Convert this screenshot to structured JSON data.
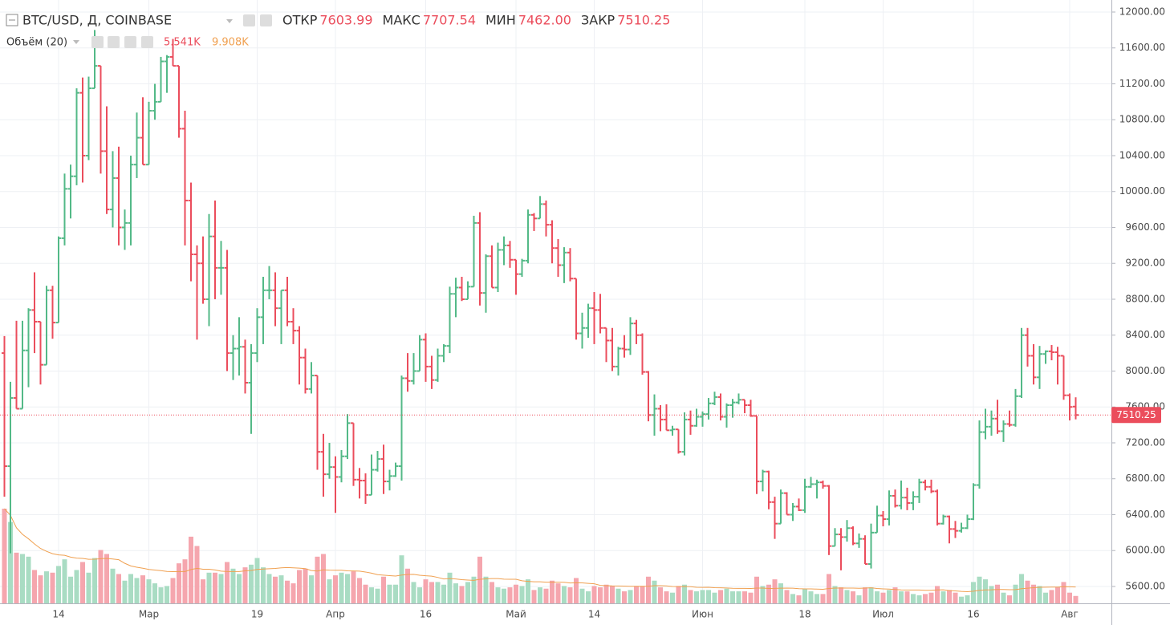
{
  "chart_data": {
    "type": "ohlc",
    "header": {
      "symbol": "BTC/USD, Д, COINBASE",
      "ohlc": [
        {
          "name": "ОТКР",
          "value": 7603.99
        },
        {
          "name": "МАКС",
          "value": 7707.54
        },
        {
          "name": "МИН",
          "value": 7462,
          "label": "7462.00"
        },
        {
          "name": "ЗАКР",
          "value": 7510.25
        }
      ]
    },
    "volume_legend": {
      "title": "Объём (20)",
      "last": {
        "value": 5.541,
        "label": "5.541K"
      },
      "ma": {
        "value": 9.908,
        "label": "9.908K"
      }
    },
    "last_price": {
      "value": 7510.25,
      "label": "7510.25"
    },
    "up_color": "#53b987",
    "down_color": "#eb4d5c",
    "volume_up_color": "#a9dcc3",
    "volume_down_color": "#f5a6ae",
    "ma_color": "#f0a050",
    "grid": true,
    "ylim": [
      5412,
      12134
    ],
    "yticks": [
      {
        "value": 12000,
        "label": "12000.00"
      },
      {
        "value": 11600,
        "label": "11600.00"
      },
      {
        "value": 11200,
        "label": "11200.00"
      },
      {
        "value": 10800,
        "label": "10800.00"
      },
      {
        "value": 10400,
        "label": "10400.00"
      },
      {
        "value": 10000,
        "label": "10000.00"
      },
      {
        "value": 9600,
        "label": "9600.00"
      },
      {
        "value": 9200,
        "label": "9200.00"
      },
      {
        "value": 8800,
        "label": "8800.00"
      },
      {
        "value": 8400,
        "label": "8400.00"
      },
      {
        "value": 8000,
        "label": "8000.00"
      },
      {
        "value": 7600,
        "label": "7600.00"
      },
      {
        "value": 7200,
        "label": "7200.00"
      },
      {
        "value": 6800,
        "label": "6800.00"
      },
      {
        "value": 6400,
        "label": "6400.00"
      },
      {
        "value": 6000,
        "label": "6000.00"
      },
      {
        "value": 5600,
        "label": "5600.00"
      }
    ],
    "categories": [
      null,
      null,
      null,
      null,
      null,
      null,
      null,
      null,
      null,
      "14",
      null,
      null,
      null,
      null,
      null,
      null,
      null,
      null,
      null,
      null,
      null,
      null,
      null,
      null,
      "Мар",
      null,
      null,
      null,
      null,
      null,
      null,
      null,
      null,
      null,
      null,
      null,
      null,
      null,
      null,
      null,
      null,
      null,
      "19",
      null,
      null,
      null,
      null,
      null,
      null,
      null,
      null,
      null,
      null,
      null,
      null,
      "Апр",
      null,
      null,
      null,
      null,
      null,
      null,
      null,
      null,
      null,
      null,
      null,
      null,
      null,
      null,
      "16",
      null,
      null,
      null,
      null,
      null,
      null,
      null,
      null,
      null,
      null,
      null,
      null,
      null,
      null,
      "Май",
      null,
      null,
      null,
      null,
      null,
      null,
      null,
      null,
      null,
      null,
      null,
      null,
      "14",
      null,
      null,
      null,
      null,
      null,
      null,
      null,
      null,
      null,
      null,
      null,
      null,
      null,
      null,
      null,
      null,
      null,
      "Июн",
      null,
      null,
      null,
      null,
      null,
      null,
      null,
      null,
      null,
      null,
      null,
      null,
      null,
      null,
      null,
      null,
      "18",
      null,
      null,
      null,
      null,
      null,
      null,
      null,
      null,
      null,
      null,
      null,
      null,
      "Июл",
      null,
      null,
      null,
      null,
      null,
      null,
      null,
      null,
      null,
      null,
      null,
      null,
      null,
      null,
      "16",
      null,
      null,
      null,
      null,
      null,
      null,
      null,
      null,
      null,
      null,
      null,
      null,
      null,
      null,
      null,
      "Авг",
      null
    ],
    "open": [
      8200,
      6940,
      7700,
      7580,
      8230,
      8680,
      8550,
      8070,
      8900,
      8540,
      9480,
      10030,
      10170,
      11100,
      10400,
      11150,
      11400,
      10450,
      9800,
      10150,
      9600,
      9650,
      10300,
      10600,
      10300,
      10900,
      11000,
      11450,
      11500,
      11400,
      10700,
      9900,
      9300,
      9200,
      8800,
      9500,
      9150,
      9150,
      8200,
      8250,
      8270,
      7870,
      8200,
      8600,
      8900,
      8900,
      8700,
      8900,
      8550,
      8450,
      8150,
      7800,
      7950,
      7100,
      6850,
      6930,
      6820,
      7050,
      7420,
      6790,
      6780,
      6620,
      6900,
      7020,
      6770,
      6830,
      6940,
      7920,
      7890,
      8000,
      8350,
      8050,
      7900,
      8170,
      8280,
      8860,
      8930,
      8800,
      8940,
      9650,
      8870,
      9280,
      8930,
      9350,
      9400,
      9240,
      9080,
      9230,
      9740,
      9700,
      9860,
      9630,
      9370,
      9180,
      9320,
      9030,
      8420,
      8480,
      8700,
      8680,
      8480,
      8340,
      8050,
      8250,
      8240,
      8530,
      8400,
      7990,
      7510,
      7580,
      7460,
      7340,
      7350,
      7100,
      7460,
      7390,
      7490,
      7520,
      7640,
      7710,
      7490,
      7620,
      7650,
      7680,
      7620,
      7500,
      6770,
      6880,
      6540,
      6300,
      6640,
      6400,
      6490,
      6450,
      6710,
      6740,
      6760,
      6720,
      6050,
      6180,
      6150,
      6250,
      6080,
      6130,
      5850,
      6200,
      6390,
      6350,
      6610,
      6500,
      6590,
      6530,
      6600,
      6760,
      6710,
      6660,
      6300,
      6380,
      6240,
      6220,
      6250,
      6350,
      6730,
      7320,
      7380,
      7470,
      7330,
      7410,
      7400,
      7720,
      8400,
      8170,
      7930,
      8190,
      8220,
      8210,
      8170,
      7730,
      7603.99
    ],
    "high": [
      8390,
      7880,
      8560,
      8560,
      8700,
      9100,
      8550,
      8950,
      8950,
      9500,
      10200,
      10300,
      11150,
      11270,
      11280,
      11800,
      11400,
      10950,
      10450,
      10500,
      9800,
      10400,
      10880,
      11050,
      11000,
      11200,
      11500,
      11520,
      11700,
      11400,
      10900,
      10100,
      9400,
      9500,
      9750,
      9900,
      9450,
      9350,
      8400,
      8600,
      8350,
      8300,
      8700,
      9050,
      9170,
      9100,
      8900,
      9050,
      8700,
      8500,
      8250,
      8100,
      7950,
      7300,
      7200,
      7050,
      7120,
      7520,
      7420,
      6920,
      6860,
      7070,
      7110,
      7180,
      6900,
      6980,
      7950,
      8200,
      8200,
      8400,
      8420,
      8170,
      8250,
      8300,
      8940,
      9040,
      9050,
      9000,
      9730,
      9770,
      9300,
      9400,
      9430,
      9500,
      9450,
      9240,
      9250,
      9800,
      9760,
      9950,
      9900,
      9680,
      9470,
      9380,
      9370,
      9030,
      8650,
      8750,
      8880,
      8860,
      8480,
      8480,
      8270,
      8400,
      8600,
      8570,
      8420,
      8000,
      7740,
      7620,
      7630,
      7390,
      7350,
      7540,
      7560,
      7580,
      7550,
      7700,
      7770,
      7750,
      7640,
      7690,
      7750,
      7680,
      7680,
      7500,
      6900,
      6890,
      6600,
      6680,
      6650,
      6530,
      6580,
      6800,
      6820,
      6790,
      6780,
      6730,
      6250,
      6250,
      6340,
      6270,
      6190,
      6170,
      6300,
      6500,
      6440,
      6670,
      6680,
      6780,
      6700,
      6660,
      6800,
      6790,
      6790,
      6680,
      6400,
      6390,
      6330,
      6310,
      6400,
      6750,
      7450,
      7580,
      7560,
      7680,
      7450,
      7560,
      7800,
      8480,
      8480,
      8300,
      8280,
      8230,
      8290,
      8270,
      8170,
      7750,
      7707.54
    ],
    "low": [
      6600,
      5970,
      7580,
      7580,
      7820,
      8200,
      7850,
      8070,
      8360,
      8540,
      9400,
      9700,
      10070,
      10100,
      10350,
      11150,
      10200,
      9750,
      9600,
      9400,
      9350,
      9400,
      10150,
      10300,
      10300,
      10800,
      11000,
      11100,
      11400,
      10600,
      9400,
      9000,
      8350,
      8750,
      8500,
      8800,
      8850,
      8000,
      7900,
      7950,
      7750,
      7300,
      8100,
      8300,
      8800,
      8500,
      8300,
      8500,
      8300,
      7850,
      7750,
      7750,
      6900,
      6600,
      6800,
      6420,
      6760,
      7020,
      6720,
      6580,
      6520,
      6620,
      6880,
      6630,
      6670,
      6820,
      6780,
      7770,
      7850,
      8000,
      7880,
      7800,
      7880,
      8100,
      8200,
      8600,
      8780,
      8800,
      8940,
      8730,
      8650,
      8930,
      8880,
      9180,
      9150,
      8850,
      9050,
      9200,
      9560,
      9700,
      9500,
      9200,
      9050,
      8980,
      9000,
      8350,
      8250,
      8370,
      8300,
      8420,
      8100,
      8000,
      7950,
      8150,
      8180,
      8300,
      7960,
      7440,
      7280,
      7330,
      7340,
      7280,
      7080,
      7060,
      7290,
      7380,
      7380,
      7460,
      7620,
      7450,
      7370,
      7480,
      7630,
      7530,
      7490,
      6630,
      6660,
      6460,
      6130,
      6300,
      6400,
      6330,
      6440,
      6420,
      6700,
      6580,
      6690,
      5950,
      6050,
      5780,
      6100,
      6060,
      6030,
      5850,
      5800,
      6200,
      6270,
      6280,
      6480,
      6460,
      6450,
      6450,
      6530,
      6670,
      6640,
      6280,
      6290,
      6080,
      6140,
      6200,
      6240,
      6340,
      6690,
      7240,
      7280,
      7300,
      7210,
      7380,
      7380,
      7700,
      8050,
      7850,
      7800,
      8080,
      8120,
      7850,
      7680,
      7450,
      7462
    ],
    "close": [
      6940,
      7700,
      7580,
      8230,
      8680,
      8550,
      8070,
      8900,
      8540,
      9480,
      10030,
      10170,
      11100,
      10400,
      11150,
      11400,
      10450,
      9800,
      10150,
      9600,
      9650,
      10300,
      10600,
      10300,
      10900,
      11000,
      11450,
      11500,
      11400,
      10700,
      9900,
      9300,
      9200,
      8800,
      9500,
      9150,
      9150,
      8200,
      8250,
      8270,
      7870,
      8200,
      8600,
      8900,
      8900,
      8700,
      8900,
      8550,
      8450,
      8150,
      7800,
      7950,
      7100,
      6850,
      6930,
      6820,
      7050,
      7420,
      6790,
      6780,
      6620,
      6900,
      7020,
      6770,
      6830,
      6940,
      7920,
      7890,
      8000,
      8350,
      8050,
      7900,
      8170,
      8280,
      8860,
      8930,
      8800,
      8940,
      9650,
      8870,
      9280,
      8930,
      9350,
      9400,
      9240,
      9080,
      9230,
      9740,
      9700,
      9860,
      9630,
      9370,
      9180,
      9320,
      9030,
      8420,
      8480,
      8700,
      8680,
      8480,
      8340,
      8050,
      8250,
      8240,
      8530,
      8400,
      7990,
      7510,
      7580,
      7460,
      7340,
      7350,
      7100,
      7460,
      7390,
      7490,
      7520,
      7640,
      7710,
      7490,
      7620,
      7650,
      7680,
      7620,
      7500,
      6770,
      6880,
      6540,
      6300,
      6640,
      6400,
      6490,
      6450,
      6710,
      6740,
      6760,
      6720,
      6050,
      6180,
      6150,
      6250,
      6080,
      6130,
      5850,
      6200,
      6390,
      6350,
      6610,
      6500,
      6590,
      6530,
      6600,
      6760,
      6710,
      6660,
      6300,
      6380,
      6240,
      6220,
      6250,
      6350,
      6730,
      7320,
      7380,
      7470,
      7330,
      7410,
      7400,
      7720,
      8400,
      8170,
      7930,
      8190,
      8220,
      8210,
      8170,
      7730,
      7600,
      7510.25
    ],
    "volume": [
      71,
      61,
      38,
      37,
      35,
      25,
      21,
      24,
      23,
      28,
      33,
      20,
      25,
      31,
      23,
      34,
      40,
      37,
      26,
      22,
      17,
      22,
      19,
      21,
      18,
      15,
      12,
      13,
      19,
      30,
      33,
      50,
      43,
      18,
      23,
      23,
      22,
      31,
      26,
      22,
      27,
      29,
      34,
      27,
      22,
      20,
      21,
      17,
      15,
      25,
      26,
      21,
      35,
      37,
      18,
      21,
      23,
      22,
      24,
      19,
      14,
      12,
      11,
      20,
      14,
      14,
      36,
      26,
      16,
      12,
      18,
      16,
      16,
      14,
      23,
      15,
      13,
      16,
      20,
      35,
      20,
      16,
      12,
      11,
      12,
      14,
      13,
      18,
      10,
      12,
      11,
      17,
      15,
      13,
      12,
      19,
      11,
      9,
      13,
      12,
      14,
      13,
      11,
      9,
      10,
      13,
      13,
      20,
      17,
      12,
      9,
      8,
      13,
      14,
      10,
      9,
      10,
      10,
      8,
      10,
      11,
      9,
      9,
      9,
      8,
      20,
      13,
      14,
      18,
      15,
      10,
      7,
      6,
      11,
      9,
      7,
      7,
      22,
      13,
      12,
      10,
      9,
      6,
      12,
      12,
      9,
      8,
      10,
      12,
      9,
      9,
      7,
      6,
      7,
      8,
      13,
      9,
      10,
      8,
      5,
      6,
      16,
      20,
      18,
      13,
      14,
      8,
      6,
      14,
      22,
      17,
      14,
      13,
      8,
      10,
      12,
      16,
      8,
      5.541
    ]
  }
}
